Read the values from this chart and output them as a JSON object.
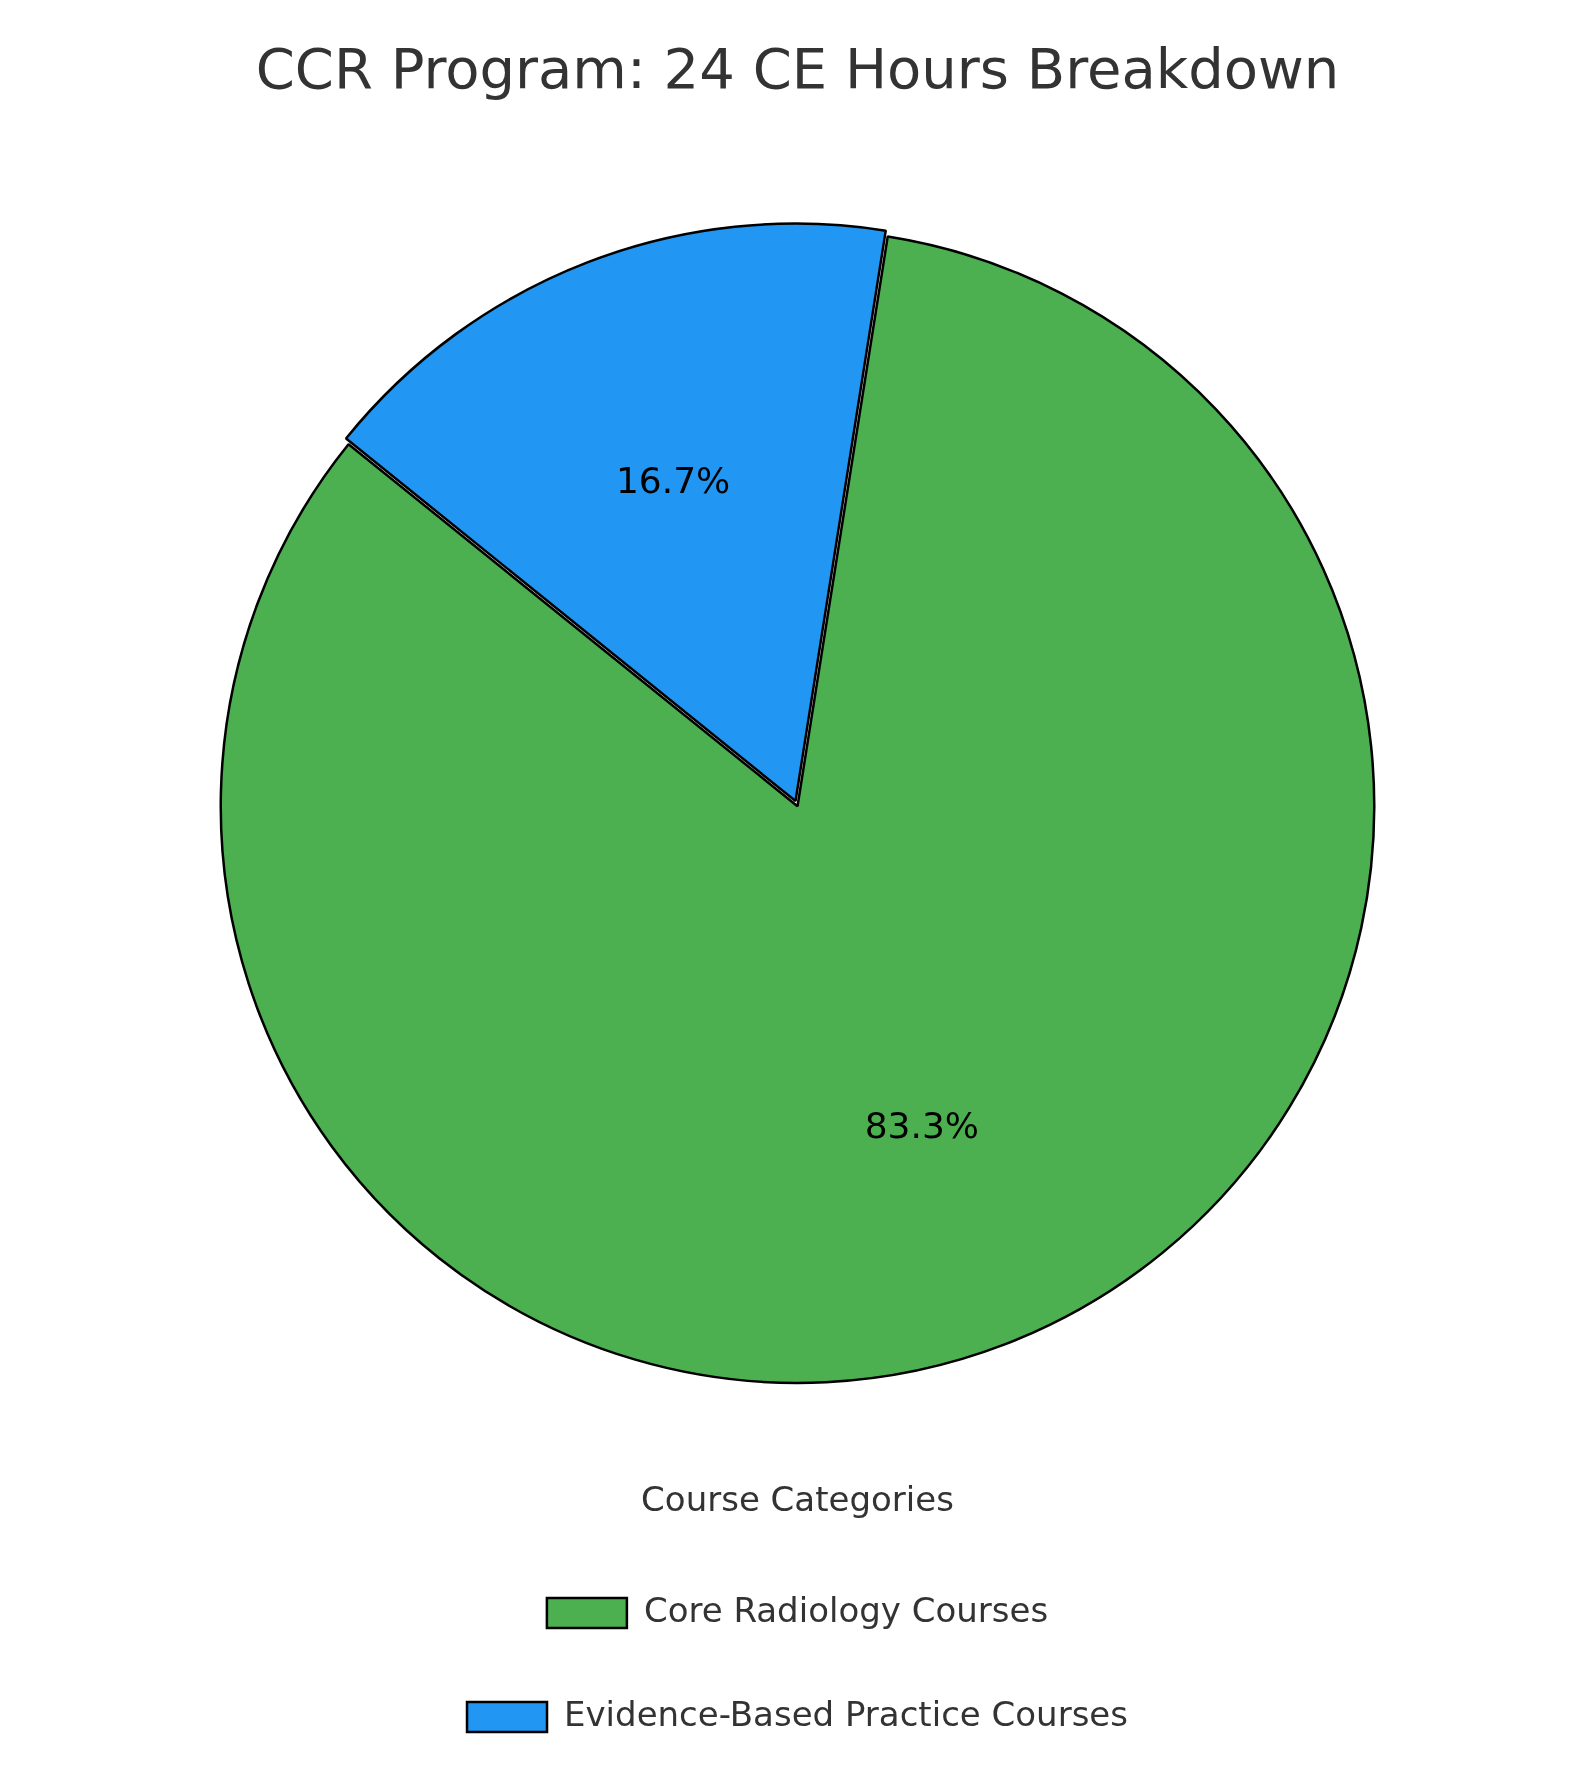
{
  "chart_data": {
    "type": "pie",
    "title": "CCR Program: 24 CE Hours Breakdown",
    "categories": [
      "Core Radiology Courses",
      "Evidence-Based Practice Courses"
    ],
    "values": [
      83.3,
      16.7
    ],
    "value_labels": [
      "83.3%",
      "16.7%"
    ],
    "colors": [
      "#4caf50",
      "#2196f3"
    ],
    "legend": "bottom",
    "legend_title": "Course Categories"
  }
}
